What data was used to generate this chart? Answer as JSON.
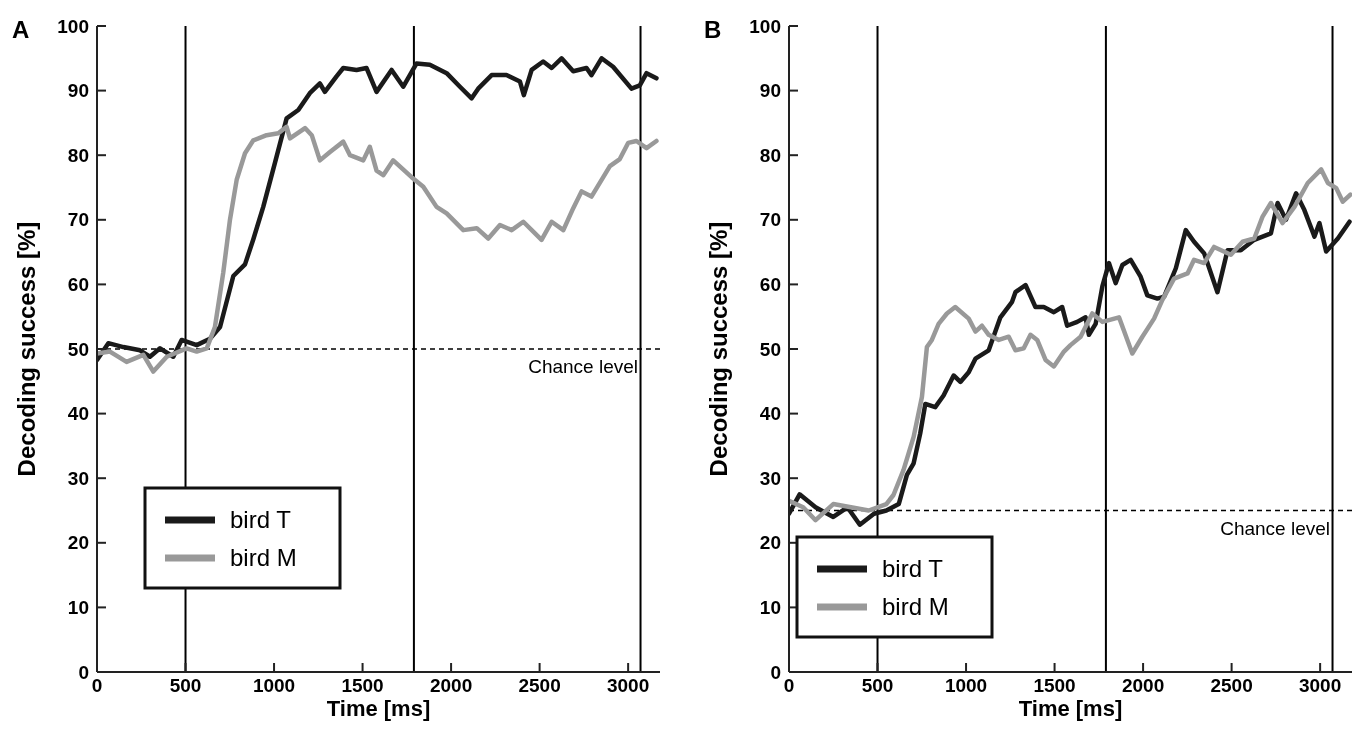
{
  "chart_data": [
    {
      "type": "line",
      "title": "A",
      "xlabel": "Time [ms]",
      "ylabel": "Decoding success [%]",
      "xlim": [
        0,
        3180
      ],
      "ylim": [
        0,
        100
      ],
      "xticks": [
        0,
        500,
        1000,
        1500,
        2000,
        2500,
        3000
      ],
      "yticks": [
        0,
        10,
        20,
        30,
        40,
        50,
        60,
        70,
        80,
        90,
        100
      ],
      "legend": "bottom left",
      "ref_lines": [
        {
          "axis": "y",
          "value": 50,
          "label": "Chance level",
          "color": "#000000",
          "line_style": "dashed"
        },
        {
          "axis": "x",
          "value": 500,
          "color": "#000000",
          "line_style": "solid"
        },
        {
          "axis": "x",
          "value": 1790,
          "color": "#000000",
          "line_style": "solid"
        },
        {
          "axis": "x",
          "value": 3070,
          "color": "#000000",
          "line_style": "solid"
        }
      ],
      "series": [
        {
          "name": "bird T",
          "color": "#1a1a1a",
          "x": [
            0,
            64,
            149,
            243,
            299,
            356,
            431,
            478,
            563,
            638,
            695,
            770,
            836,
            883,
            939,
            1005,
            1071,
            1137,
            1202,
            1259,
            1287,
            1353,
            1391,
            1466,
            1522,
            1579,
            1664,
            1730,
            1805,
            1880,
            1975,
            2050,
            2116,
            2153,
            2229,
            2313,
            2389,
            2411,
            2455,
            2520,
            2568,
            2624,
            2690,
            2765,
            2793,
            2850,
            2915,
            3019,
            3066,
            3104,
            3160
          ],
          "values": [
            48.3,
            50.9,
            50.3,
            49.8,
            48.8,
            50.1,
            48.8,
            51.4,
            50.6,
            51.6,
            53.4,
            61.3,
            63.1,
            67,
            72,
            78.8,
            85.7,
            87,
            89.6,
            91.1,
            89.8,
            92.2,
            93.5,
            93.2,
            93.5,
            89.8,
            93.2,
            90.6,
            94.2,
            94,
            92.7,
            90.6,
            88.8,
            90.3,
            92.4,
            92.4,
            91.4,
            89.3,
            93.2,
            94.5,
            93.5,
            95,
            93,
            93.5,
            92.4,
            95,
            93.7,
            90.3,
            90.8,
            92.7,
            91.9
          ]
        },
        {
          "name": "bird M",
          "color": "#999999",
          "x": [
            0,
            73,
            167,
            262,
            318,
            394,
            506,
            563,
            620,
            666,
            713,
            751,
            789,
            836,
            883,
            958,
            1024,
            1071,
            1090,
            1175,
            1213,
            1259,
            1316,
            1391,
            1429,
            1504,
            1541,
            1579,
            1617,
            1673,
            1777,
            1843,
            1918,
            1975,
            2069,
            2145,
            2210,
            2276,
            2342,
            2408,
            2511,
            2568,
            2634,
            2690,
            2737,
            2793,
            2897,
            2953,
            3000,
            3047,
            3104,
            3160
          ],
          "values": [
            49.3,
            49.6,
            48,
            49.1,
            46.5,
            48.8,
            50.1,
            49.6,
            50.1,
            53.4,
            61.8,
            70,
            76.2,
            80.3,
            82.3,
            83.1,
            83.4,
            84.4,
            82.6,
            84.2,
            83.1,
            79.2,
            80.5,
            82.1,
            80,
            79.2,
            81.3,
            77.6,
            76.9,
            79.2,
            76.6,
            75.1,
            72,
            71,
            68.4,
            68.7,
            67.1,
            69.2,
            68.4,
            69.7,
            66.9,
            69.7,
            68.4,
            71.8,
            74.4,
            73.6,
            78.3,
            79.4,
            81.9,
            82.2,
            81.1,
            82.2
          ]
        }
      ]
    },
    {
      "type": "line",
      "title": "B",
      "xlabel": "Time [ms]",
      "ylabel": "Decoding success [%]",
      "xlim": [
        0,
        3180
      ],
      "ylim": [
        0,
        100
      ],
      "xticks": [
        0,
        500,
        1000,
        1500,
        2000,
        2500,
        3000
      ],
      "yticks": [
        0,
        10,
        20,
        30,
        40,
        50,
        60,
        70,
        80,
        90,
        100
      ],
      "legend": "bottom left",
      "ref_lines": [
        {
          "axis": "y",
          "value": 25,
          "label": "Chance level",
          "color": "#000000",
          "line_style": "dashed"
        },
        {
          "axis": "x",
          "value": 500,
          "color": "#000000",
          "line_style": "solid"
        },
        {
          "axis": "x",
          "value": 1790,
          "color": "#000000",
          "line_style": "solid"
        },
        {
          "axis": "x",
          "value": 3070,
          "color": "#000000",
          "line_style": "solid"
        }
      ],
      "series": [
        {
          "name": "bird T",
          "color": "#1a1a1a",
          "x": [
            0,
            60,
            150,
            250,
            330,
            400,
            480,
            550,
            620,
            666,
            704,
            741,
            770,
            826,
            873,
            930,
            968,
            1015,
            1053,
            1128,
            1194,
            1260,
            1279,
            1336,
            1392,
            1439,
            1496,
            1543,
            1571,
            1628,
            1675,
            1694,
            1732,
            1770,
            1807,
            1845,
            1883,
            1930,
            1986,
            2024,
            2081,
            2119,
            2185,
            2241,
            2288,
            2345,
            2420,
            2477,
            2552,
            2628,
            2722,
            2760,
            2807,
            2864,
            2911,
            2968,
            2996,
            3034,
            3100,
            3166
          ],
          "values": [
            24.5,
            27.5,
            25.5,
            24,
            25.5,
            22.8,
            24.5,
            25,
            26,
            30.5,
            32.3,
            36.9,
            41.5,
            41,
            42.8,
            45.9,
            44.9,
            46.4,
            48.5,
            49.8,
            54.9,
            57.3,
            58.8,
            59.9,
            56.5,
            56.5,
            55.7,
            56.5,
            53.6,
            54.2,
            54.9,
            52.2,
            53.9,
            59.7,
            63.3,
            60.2,
            63,
            63.8,
            61.2,
            58.3,
            57.8,
            58.1,
            62.5,
            68.4,
            66.6,
            64.8,
            58.8,
            65.3,
            65.3,
            66.9,
            67.9,
            72.6,
            70,
            74.1,
            71.5,
            67.4,
            69.5,
            65.1,
            67.1,
            69.7
          ]
        },
        {
          "name": "bird M",
          "color": "#999999",
          "x": [
            0,
            80,
            150,
            250,
            350,
            450,
            550,
            590,
            647,
            704,
            751,
            779,
            807,
            845,
            892,
            939,
            1015,
            1053,
            1090,
            1128,
            1185,
            1241,
            1279,
            1326,
            1364,
            1402,
            1449,
            1496,
            1553,
            1590,
            1647,
            1713,
            1770,
            1864,
            1939,
            1996,
            2062,
            2109,
            2175,
            2251,
            2288,
            2345,
            2401,
            2496,
            2562,
            2628,
            2675,
            2722,
            2788,
            2855,
            2930,
            3006,
            3044,
            3091,
            3128,
            3171
          ],
          "values": [
            26.5,
            25.5,
            23.5,
            26,
            25.5,
            25,
            26,
            27.4,
            31.3,
            36.4,
            42.6,
            50.3,
            51.4,
            53.9,
            55.5,
            56.5,
            54.7,
            52.7,
            53.6,
            52.2,
            51.4,
            51.9,
            49.8,
            50.1,
            52.2,
            51.4,
            48.3,
            47.3,
            49.6,
            50.6,
            51.9,
            55.5,
            54.2,
            54.9,
            49.3,
            51.9,
            54.7,
            57.6,
            60.9,
            61.7,
            63.8,
            63.3,
            65.8,
            64.6,
            66.6,
            67.1,
            70.5,
            72.6,
            69.5,
            72,
            75.7,
            77.8,
            75.7,
            74.9,
            72.8,
            73.9
          ]
        }
      ]
    }
  ]
}
